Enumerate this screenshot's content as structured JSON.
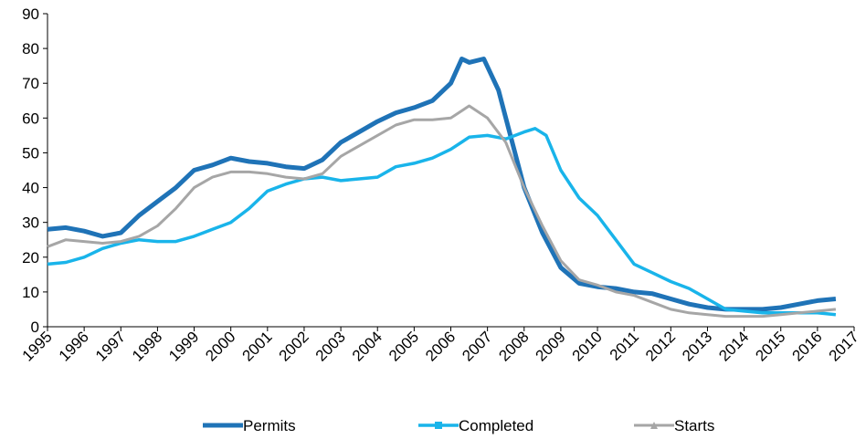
{
  "chart_data": {
    "type": "line",
    "xlim": [
      1995,
      2017
    ],
    "xticks": [
      1995,
      1996,
      1997,
      1998,
      1999,
      2000,
      2001,
      2002,
      2003,
      2004,
      2005,
      2006,
      2007,
      2008,
      2009,
      2010,
      2011,
      2012,
      2013,
      2014,
      2015,
      2016,
      2017
    ],
    "ylim": [
      0,
      90
    ],
    "yticks": [
      0,
      10,
      20,
      30,
      40,
      50,
      60,
      70,
      80,
      90
    ],
    "legend": "bottom",
    "series": [
      {
        "name": "Permits",
        "color": "#1f73b7",
        "x": [
          1995,
          1995.5,
          1996,
          1996.5,
          1997,
          1997.5,
          1998,
          1998.5,
          1999,
          1999.5,
          2000,
          2000.5,
          2001,
          2001.5,
          2002,
          2002.5,
          2003,
          2003.5,
          2004,
          2004.5,
          2005,
          2005.5,
          2006,
          2006.3,
          2006.5,
          2006.9,
          2007.3,
          2007.5,
          2008,
          2008.5,
          2009,
          2009.5,
          2010,
          2010.5,
          2011,
          2011.5,
          2012,
          2012.5,
          2013,
          2013.5,
          2014,
          2014.5,
          2015,
          2015.5,
          2016,
          2016.5
        ],
        "values": [
          28,
          28.5,
          27.5,
          26,
          27,
          32,
          36,
          40,
          45,
          46.5,
          48.5,
          47.5,
          47,
          46,
          45.5,
          48,
          53,
          56,
          59,
          61.5,
          63,
          65,
          70,
          77,
          76,
          77,
          68,
          60,
          40,
          27,
          17,
          12.5,
          11.5,
          11,
          10,
          9.5,
          8,
          6.5,
          5.5,
          5,
          5,
          5,
          5.5,
          6.5,
          7.5,
          8
        ]
      },
      {
        "name": "Completed",
        "color": "#19b4ea",
        "x": [
          1995,
          1995.5,
          1996,
          1996.5,
          1997,
          1997.5,
          1998,
          1998.5,
          1999,
          1999.5,
          2000,
          2000.5,
          2001,
          2001.5,
          2002,
          2002.5,
          2003,
          2003.5,
          2004,
          2004.5,
          2005,
          2005.5,
          2006,
          2006.5,
          2007,
          2007.5,
          2008,
          2008.3,
          2008.6,
          2009,
          2009.5,
          2010,
          2010.5,
          2011,
          2011.5,
          2012,
          2012.5,
          2013,
          2013.5,
          2014,
          2014.5,
          2015,
          2015.5,
          2016,
          2016.5
        ],
        "values": [
          18,
          18.5,
          20,
          22.5,
          24,
          25,
          24.5,
          24.5,
          26,
          28,
          30,
          34,
          39,
          41,
          42.5,
          43,
          42,
          42.5,
          43,
          46,
          47,
          48.5,
          51,
          54.5,
          55,
          54,
          56,
          57,
          55,
          45,
          37,
          32,
          25,
          18,
          15.5,
          13,
          11,
          8,
          5,
          4.5,
          4,
          4,
          4,
          4,
          3.5
        ]
      },
      {
        "name": "Starts",
        "color": "#a6a6a6",
        "x": [
          1995,
          1995.5,
          1996,
          1996.5,
          1997,
          1997.5,
          1998,
          1998.5,
          1999,
          1999.5,
          2000,
          2000.5,
          2001,
          2001.5,
          2002,
          2002.5,
          2003,
          2003.5,
          2004,
          2004.5,
          2005,
          2005.5,
          2006,
          2006.5,
          2007,
          2007.5,
          2008,
          2008.5,
          2009,
          2009.5,
          2010,
          2010.5,
          2011,
          2011.5,
          2012,
          2012.5,
          2013,
          2013.5,
          2014,
          2014.5,
          2015,
          2015.5,
          2016,
          2016.5
        ],
        "values": [
          23,
          25,
          24.5,
          24,
          24.5,
          26,
          29,
          34,
          40,
          43,
          44.5,
          44.5,
          44,
          43,
          42.5,
          44,
          49,
          52,
          55,
          58,
          59.5,
          59.5,
          60,
          63.5,
          60,
          53,
          40,
          29,
          19,
          13.5,
          12,
          10,
          9,
          7,
          5,
          4,
          3.5,
          3,
          3,
          3,
          3.5,
          4,
          4.5,
          5
        ]
      }
    ]
  }
}
